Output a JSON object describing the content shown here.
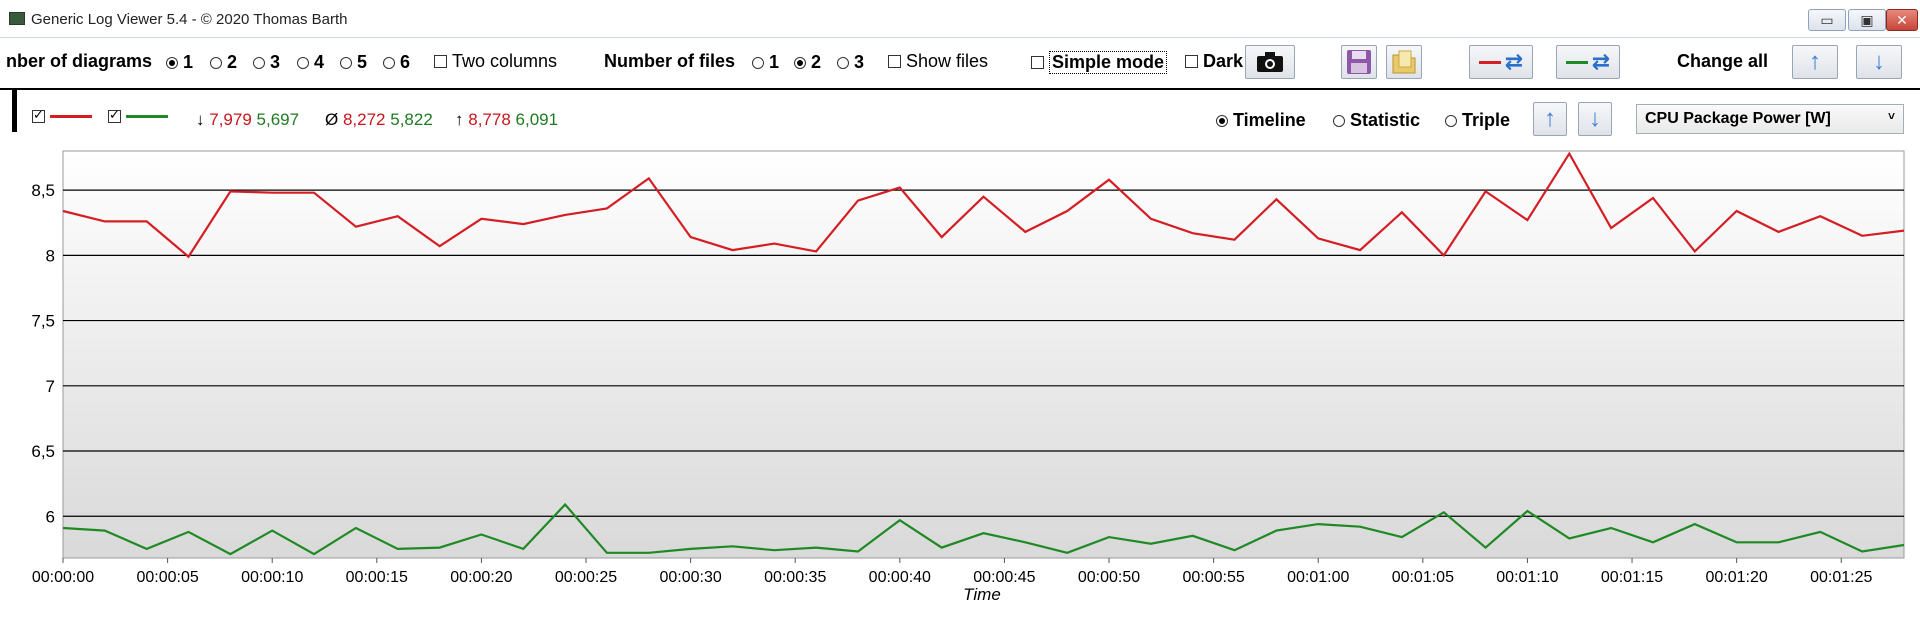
{
  "window": {
    "title": "Generic Log Viewer 5.4 - © 2020 Thomas Barth",
    "minimize": "▭",
    "maximize": "▣",
    "close": "✕"
  },
  "toolbar": {
    "num_diagrams_label": "nber of diagrams",
    "diagram_options": [
      "1",
      "2",
      "3",
      "4",
      "5",
      "6"
    ],
    "diagram_selected": "1",
    "two_columns_label": "Two columns",
    "num_files_label": "Number of files",
    "file_options": [
      "1",
      "2",
      "3"
    ],
    "file_selected": "2",
    "show_files_label": "Show files",
    "simple_mode_label": "Simple mode",
    "dark_label": "Dark",
    "change_all_label": "Change all"
  },
  "row2": {
    "stat_min_symbol": "↓",
    "stat_min_red": "7,979",
    "stat_min_green": "5,697",
    "stat_avg_symbol": "Ø",
    "stat_avg_red": "8,272",
    "stat_avg_green": "5,822",
    "stat_max_symbol": "↑",
    "stat_max_red": "8,778",
    "stat_max_green": "6,091",
    "view_modes": [
      "Timeline",
      "Statistic",
      "Triple"
    ],
    "view_selected": "Timeline",
    "sensor_selected": "CPU Package Power [W]"
  },
  "colors": {
    "series1": "#d41e24",
    "series2": "#1f8a24",
    "accent": "#3b7fd6"
  },
  "chart_data": {
    "type": "line",
    "xlabel": "Time",
    "ylabel": "",
    "ylim": [
      5.68,
      8.8
    ],
    "yticks": [
      "8,5",
      "8",
      "7,5",
      "7",
      "6,5",
      "6"
    ],
    "ytick_values": [
      8.5,
      8.0,
      7.5,
      7.0,
      6.5,
      6.0
    ],
    "xticks": [
      "00:00:00",
      "00:00:05",
      "00:00:10",
      "00:00:15",
      "00:00:20",
      "00:00:25",
      "00:00:30",
      "00:00:35",
      "00:00:40",
      "00:00:45",
      "00:00:50",
      "00:00:55",
      "00:01:00",
      "00:01:05",
      "00:01:10",
      "00:01:15",
      "00:01:20",
      "00:01:25"
    ],
    "xtick_seconds": [
      0,
      5,
      10,
      15,
      20,
      25,
      30,
      35,
      40,
      45,
      50,
      55,
      60,
      65,
      70,
      75,
      80,
      85
    ],
    "x_seconds": [
      0,
      2,
      4,
      6,
      8,
      10,
      12,
      14,
      16,
      18,
      20,
      22,
      24,
      26,
      28,
      30,
      32,
      34,
      36,
      38,
      40,
      42,
      44,
      46,
      48,
      50,
      52,
      54,
      56,
      58,
      60,
      62,
      64,
      66,
      68,
      70,
      72,
      74,
      76,
      78,
      80,
      82,
      84,
      86,
      88
    ],
    "series": [
      {
        "values": [
          8.34,
          8.26,
          8.26,
          7.99,
          8.49,
          8.48,
          8.48,
          8.22,
          8.3,
          8.07,
          8.28,
          8.24,
          8.31,
          8.36,
          8.59,
          8.14,
          8.04,
          8.09,
          8.03,
          8.42,
          8.52,
          8.14,
          8.45,
          8.18,
          8.34,
          8.58,
          8.28,
          8.17,
          8.12,
          8.43,
          8.13,
          8.04,
          8.33,
          8.0,
          8.49,
          8.27,
          8.78,
          8.21,
          8.44,
          8.03,
          8.34,
          8.18,
          8.3,
          8.15,
          8.19
        ]
      },
      {
        "values": [
          5.91,
          5.89,
          5.75,
          5.88,
          5.71,
          5.89,
          5.71,
          5.91,
          5.75,
          5.76,
          5.86,
          5.75,
          6.09,
          5.72,
          5.72,
          5.75,
          5.77,
          5.74,
          5.76,
          5.73,
          5.97,
          5.76,
          5.87,
          5.8,
          5.72,
          5.84,
          5.79,
          5.85,
          5.74,
          5.89,
          5.94,
          5.92,
          5.84,
          6.03,
          5.76,
          6.04,
          5.83,
          5.91,
          5.8,
          5.94,
          5.8,
          5.8,
          5.88,
          5.73,
          5.78
        ]
      }
    ]
  }
}
